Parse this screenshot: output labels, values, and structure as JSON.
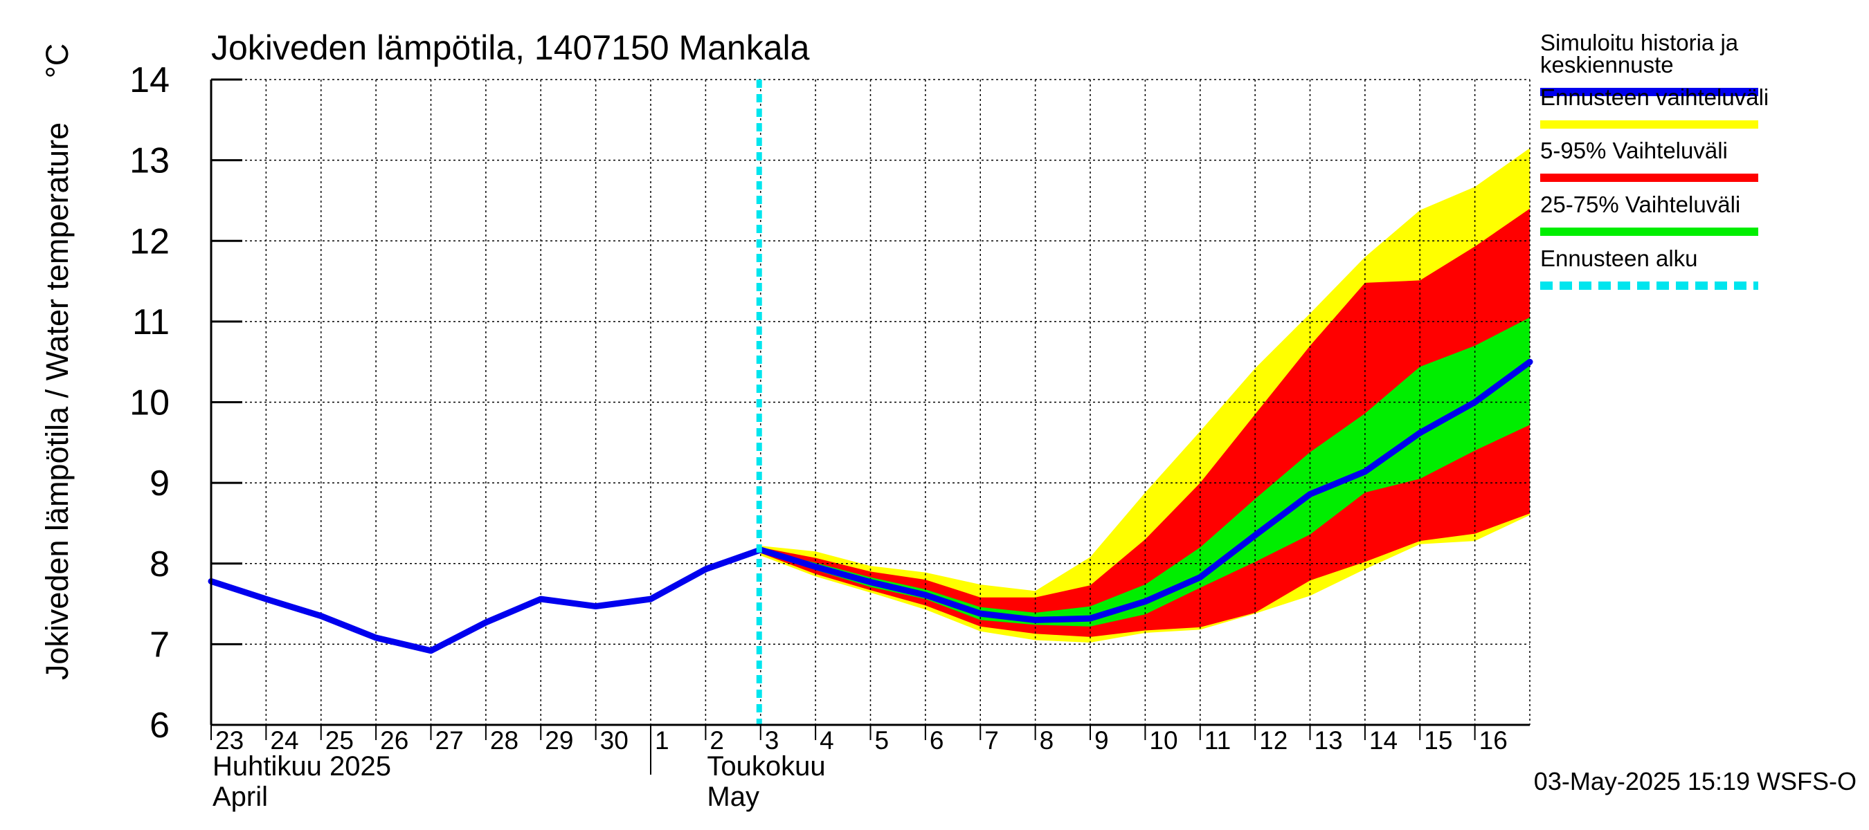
{
  "chart_data": {
    "type": "line",
    "title": "Jokiveden lämpötila, 1407150 Mankala",
    "ylabel": "Jokiveden lämpötila / Water temperature",
    "yunit": "°C",
    "ylim": [
      6,
      14
    ],
    "yticks": [
      6,
      7,
      8,
      9,
      10,
      11,
      12,
      13,
      14
    ],
    "x_dates": [
      "2025-04-23",
      "2025-04-24",
      "2025-04-25",
      "2025-04-26",
      "2025-04-27",
      "2025-04-28",
      "2025-04-29",
      "2025-04-30",
      "2025-05-01",
      "2025-05-02",
      "2025-05-03",
      "2025-05-04",
      "2025-05-05",
      "2025-05-06",
      "2025-05-07",
      "2025-05-08",
      "2025-05-09",
      "2025-05-10",
      "2025-05-11",
      "2025-05-12",
      "2025-05-13",
      "2025-05-14",
      "2025-05-15",
      "2025-05-16",
      "2025-05-17"
    ],
    "xlim": [
      "2025-04-23",
      "2025-05-17"
    ],
    "day_labels": [
      "23",
      "24",
      "25",
      "26",
      "27",
      "28",
      "29",
      "30",
      "1",
      "2",
      "3",
      "4",
      "5",
      "6",
      "7",
      "8",
      "9",
      "10",
      "11",
      "12",
      "13",
      "14",
      "15",
      "16"
    ],
    "month_labels": [
      {
        "fi": "Huhtikuu  2025",
        "en": "April",
        "start": "2025-04-23"
      },
      {
        "fi": "Toukokuu",
        "en": "May",
        "start": "2025-05-01"
      }
    ],
    "grid": true,
    "forecast_start": "2025-05-03",
    "series": [
      {
        "name": "Simuloitu historia ja keskiennuste",
        "color": "#0000ee",
        "values": [
          7.78,
          7.56,
          7.35,
          7.08,
          6.92,
          7.27,
          7.56,
          7.47,
          7.56,
          7.93,
          8.17,
          7.96,
          7.77,
          7.61,
          7.38,
          7.3,
          7.32,
          7.53,
          7.83,
          8.35,
          8.86,
          9.14,
          9.62,
          10.0,
          10.5
        ]
      }
    ],
    "bands": [
      {
        "name": "Ennusteen vaihteluväli",
        "color": "#ffff00",
        "start": "2025-05-03",
        "upper": [
          8.22,
          8.15,
          7.97,
          7.89,
          7.74,
          7.66,
          8.08,
          8.88,
          9.64,
          10.42,
          11.1,
          11.8,
          12.38,
          12.67,
          13.15
        ],
        "lower": [
          8.1,
          7.84,
          7.64,
          7.43,
          7.16,
          7.05,
          7.02,
          7.14,
          7.18,
          7.38,
          7.6,
          7.93,
          8.24,
          8.28,
          8.6
        ]
      },
      {
        "name": "5-95% Vaihteluväli",
        "color": "#ff0000",
        "start": "2025-05-03",
        "upper": [
          8.2,
          8.07,
          7.9,
          7.8,
          7.58,
          7.58,
          7.73,
          8.3,
          9.0,
          9.85,
          10.7,
          11.48,
          11.51,
          11.93,
          12.4
        ],
        "lower": [
          8.13,
          7.87,
          7.67,
          7.48,
          7.22,
          7.13,
          7.09,
          7.17,
          7.21,
          7.39,
          7.79,
          8.02,
          8.28,
          8.37,
          8.62
        ]
      },
      {
        "name": "25-75% Vaihteluväli",
        "color": "#00ee00",
        "start": "2025-05-03",
        "upper": [
          8.17,
          8.01,
          7.83,
          7.68,
          7.46,
          7.39,
          7.47,
          7.74,
          8.2,
          8.8,
          9.38,
          9.86,
          10.44,
          10.7,
          11.05
        ],
        "lower": [
          8.15,
          7.92,
          7.71,
          7.56,
          7.3,
          7.24,
          7.22,
          7.37,
          7.7,
          8.02,
          8.36,
          8.88,
          9.05,
          9.4,
          9.72
        ]
      }
    ],
    "legend": [
      {
        "label": "Simuloitu historia ja keskiennuste",
        "lines": [
          "Simuloitu historia ja",
          "keskiennuste"
        ],
        "color": "#0000ee",
        "style": "solid"
      },
      {
        "label": "Ennusteen vaihteluväli",
        "lines": [
          "Ennusteen vaihteluväli"
        ],
        "color": "#ffff00",
        "style": "solid"
      },
      {
        "label": "5-95% Vaihteluväli",
        "lines": [
          "5-95% Vaihteluväli"
        ],
        "color": "#ff0000",
        "style": "solid"
      },
      {
        "label": "25-75% Vaihteluväli",
        "lines": [
          "25-75% Vaihteluväli"
        ],
        "color": "#00ee00",
        "style": "solid"
      },
      {
        "label": "Ennusteen alku",
        "lines": [
          "Ennusteen alku"
        ],
        "color": "#00e5ee",
        "style": "dashed"
      }
    ],
    "legend_position": "right",
    "footer": "03-May-2025 15:19 WSFS-O"
  }
}
